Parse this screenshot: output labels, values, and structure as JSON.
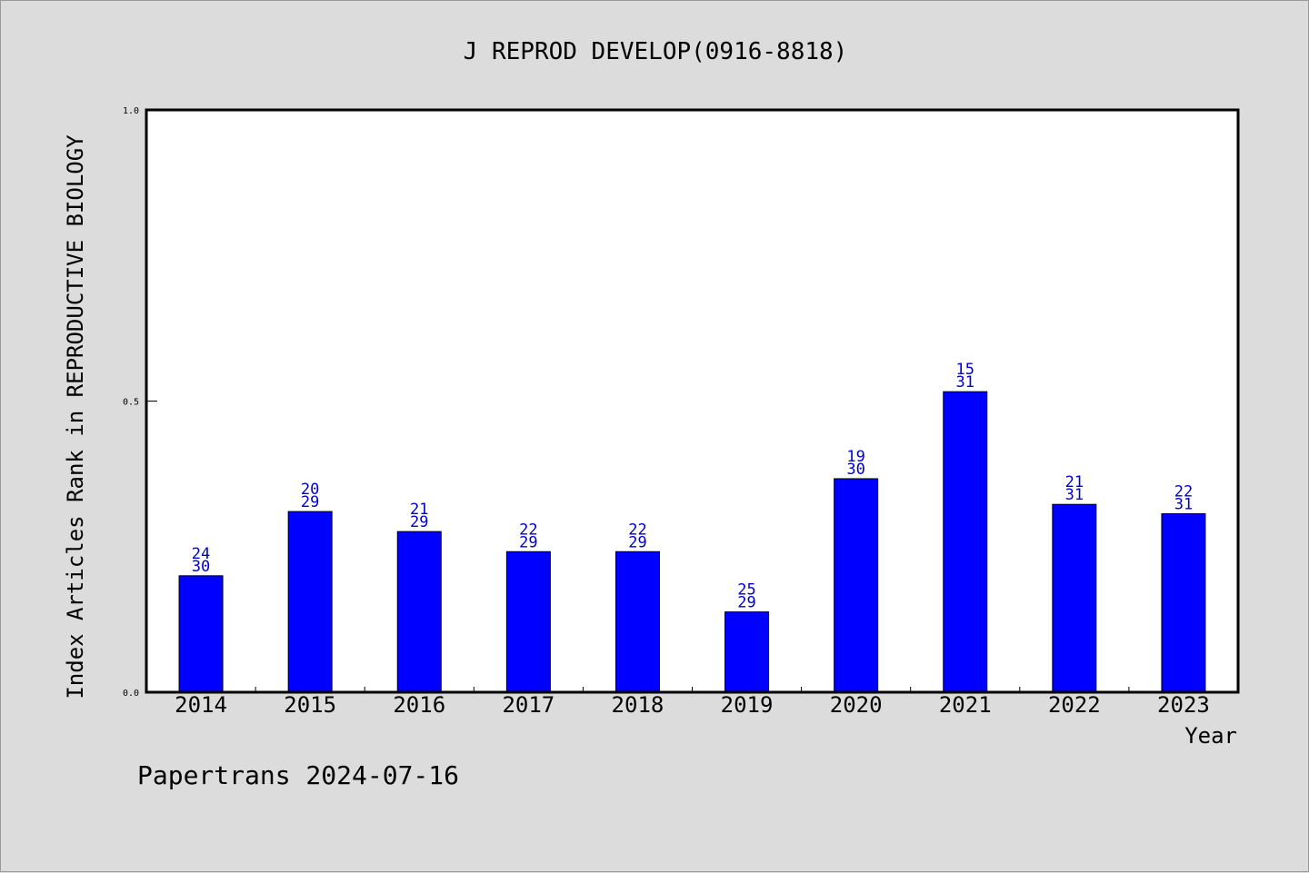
{
  "chart_data": {
    "type": "bar",
    "title": "J REPROD DEVELOP(0916-8818)",
    "xlabel": "Year",
    "ylabel": "Index Articles Rank in REPRODUCTIVE BIOLOGY",
    "ylim": [
      0,
      1.0
    ],
    "yticks": [
      "0.0",
      "0.5",
      "1.0"
    ],
    "grid": false,
    "categories": [
      "2014",
      "2015",
      "2016",
      "2017",
      "2018",
      "2019",
      "2020",
      "2021",
      "2022",
      "2023"
    ],
    "values": [
      0.2,
      0.3103,
      0.2759,
      0.2414,
      0.2414,
      0.1379,
      0.3667,
      0.5161,
      0.3226,
      0.3065
    ],
    "rank": [
      "24",
      "20",
      "21",
      "22",
      "22",
      "25",
      "19",
      "15",
      "21",
      "22"
    ],
    "total": [
      "30",
      "29",
      "29",
      "29",
      "29",
      "29",
      "30",
      "31",
      "31",
      "31"
    ],
    "colors": {
      "bar": "#0000ff",
      "label": "#0000cc",
      "background": "#dcdcdc",
      "plot": "#ffffff"
    }
  },
  "footer": "Papertrans 2024-07-16"
}
